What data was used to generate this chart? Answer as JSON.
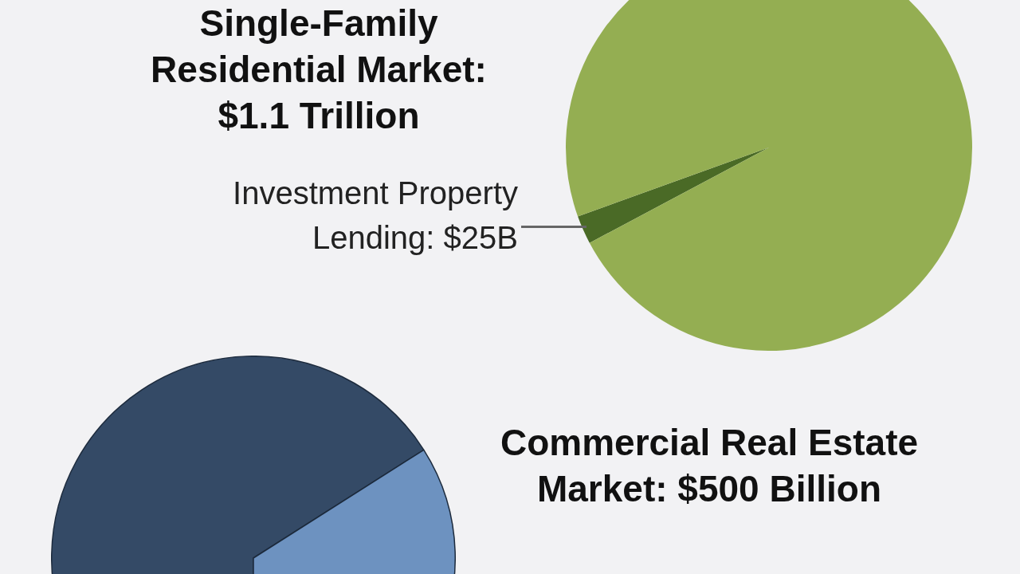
{
  "chart_data": [
    {
      "type": "pie",
      "title": "Single-Family Residential Market: $1.1 Trillion",
      "categories": [
        "Investment Property Lending: $25B",
        null
      ],
      "values": [
        25,
        1075
      ],
      "colors": [
        "#4a6a26",
        "#94ae52"
      ]
    },
    {
      "type": "pie",
      "title": "Commercial Real Estate Market: $500 Billion",
      "categories": [
        null,
        null
      ],
      "values": [
        66,
        34
      ],
      "colors": [
        "#344a66",
        "#6d92c0"
      ]
    }
  ]
}
